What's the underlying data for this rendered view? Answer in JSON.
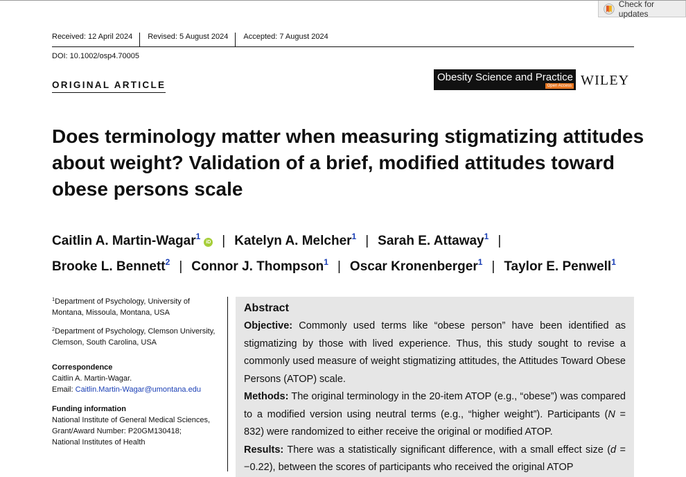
{
  "check_updates": {
    "label": "Check for updates"
  },
  "dates": {
    "received": "Received: 12 April 2024",
    "revised": "Revised: 5 August 2024",
    "accepted": "Accepted: 7 August 2024"
  },
  "doi": "DOI: 10.1002/osp4.70005",
  "section_label": "ORIGINAL ARTICLE",
  "journal": {
    "name": "Obesity Science and Practice",
    "open_access": "Open Access",
    "publisher": "WILEY"
  },
  "title": "Does terminology matter when measuring stigmatizing attitudes about weight? Validation of a brief, modified attitudes toward obese persons scale",
  "authors": [
    {
      "name": "Caitlin A. Martin-Wagar",
      "sup": "1"
    },
    {
      "name": "Katelyn A. Melcher",
      "sup": "1"
    },
    {
      "name": "Sarah E. Attaway",
      "sup": "1"
    },
    {
      "name": "Brooke L. Bennett",
      "sup": "2"
    },
    {
      "name": "Connor J. Thompson",
      "sup": "1"
    },
    {
      "name": "Oscar Kronenberger",
      "sup": "1"
    },
    {
      "name": "Taylor E. Penwell",
      "sup": "1"
    }
  ],
  "orcid_label": "iD",
  "affiliations": [
    {
      "sup": "1",
      "text": "Department of Psychology, University of Montana, Missoula, Montana, USA"
    },
    {
      "sup": "2",
      "text": "Department of Psychology, Clemson University, Clemson, South Carolina, USA"
    }
  ],
  "correspondence": {
    "heading": "Correspondence",
    "name": "Caitlin A. Martin-Wagar.",
    "email_label": "Email:",
    "email": "Caitlin.Martin-Wagar@umontana.edu"
  },
  "funding": {
    "heading": "Funding information",
    "lines": [
      "National Institute of General Medical Sciences,",
      "Grant/Award Number: P20GM130418;",
      "National Institutes of Health"
    ]
  },
  "abstract": {
    "heading": "Abstract",
    "objective_label": "Objective:",
    "objective": "Commonly used terms like “obese person” have been identified as stigmatizing by those with lived experience. Thus, this study sought to revise a commonly used measure of weight stigmatizing attitudes, the Attitudes Toward Obese Persons (ATOP) scale.",
    "methods_label": "Methods:",
    "methods_a": "The original terminology in the 20-item ATOP (e.g., “obese”) was compared to a modified version using neutral terms (e.g., “higher weight”). Participants (",
    "methods_n": "N",
    "methods_b": " = 832) were randomized to either receive the original or modified ATOP.",
    "results_label": "Results:",
    "results_a": "There was a statistically significant difference, with a small effect size (",
    "results_d": "d",
    "results_b": " = −0.22), between the scores of participants who received the original ATOP"
  }
}
